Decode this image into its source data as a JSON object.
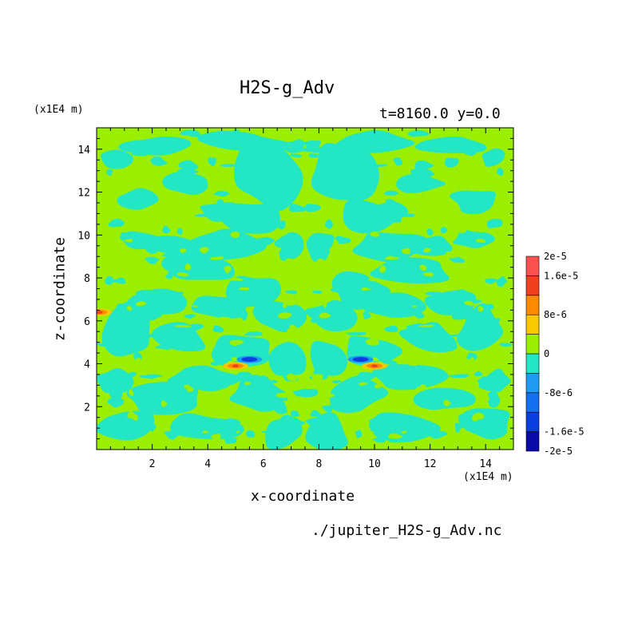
{
  "title": "H2S-g_Adv",
  "time_info": "t=8160.0 y=0.0",
  "unit_top": "(x1E4 m)",
  "unit_bottom": "(x1E4 m)",
  "filename": "./jupiter_H2S-g_Adv.nc",
  "colors": {
    "background_value": "#9aee00",
    "neg_small": "#22e6c4",
    "neg_mid": "#1e9cf2",
    "neg_large": "#0a3ee0",
    "neg_max": "#0a0aa8",
    "pos_small": "#f8c800",
    "pos_mid": "#ff8a00",
    "pos_large": "#f04020",
    "pos_max": "#ff5050"
  },
  "chart_data": {
    "type": "heatmap",
    "xlabel": "x-coordinate",
    "ylabel": "z-coordinate",
    "xlim": [
      0,
      15
    ],
    "ylim": [
      0,
      15
    ],
    "x_ticks": [
      "2",
      "4",
      "6",
      "8",
      "10",
      "12",
      "14"
    ],
    "y_ticks": [
      "2",
      "4",
      "6",
      "8",
      "10",
      "12",
      "14"
    ],
    "colorbar": {
      "levels": [
        -2e-05,
        -1.6e-05,
        -1.2e-05,
        -8e-06,
        -4e-06,
        0,
        4e-06,
        8e-06,
        1.2e-05,
        1.6e-05,
        2e-05
      ],
      "colors": [
        "#0a0aa8",
        "#0a3ee0",
        "#1470f0",
        "#1e9cf2",
        "#22e6c4",
        "#9aee00",
        "#f8c800",
        "#ff8a00",
        "#f04020",
        "#ff5050"
      ],
      "labels": [
        "2e-5",
        "1.6e-5",
        "8e-6",
        "0",
        "-8e-6",
        "-1.6e-5",
        "-2e-5"
      ]
    },
    "features": [
      {
        "kind": "background",
        "value": 0
      },
      {
        "kind": "region",
        "value": -2e-06,
        "x": [
          0.2,
          14.8
        ],
        "y": [
          3.8,
          9.6
        ]
      },
      {
        "kind": "region",
        "value": -2e-06,
        "x": [
          0,
          15
        ],
        "y": [
          0,
          3.6
        ]
      },
      {
        "kind": "region",
        "value": -2e-06,
        "x": [
          5.4,
          9.6
        ],
        "y": [
          11.5,
          15
        ]
      },
      {
        "kind": "blob",
        "value": -1e-05,
        "x": 5.5,
        "y": 4.2
      },
      {
        "kind": "blob",
        "value": -1e-05,
        "x": 9.5,
        "y": 4.2
      },
      {
        "kind": "blob",
        "value": 1.2e-05,
        "x": 5.0,
        "y": 3.9
      },
      {
        "kind": "blob",
        "value": 1.2e-05,
        "x": 10.0,
        "y": 3.9
      },
      {
        "kind": "blob",
        "value": 1.2e-05,
        "x": 0.1,
        "y": 6.4
      }
    ]
  }
}
